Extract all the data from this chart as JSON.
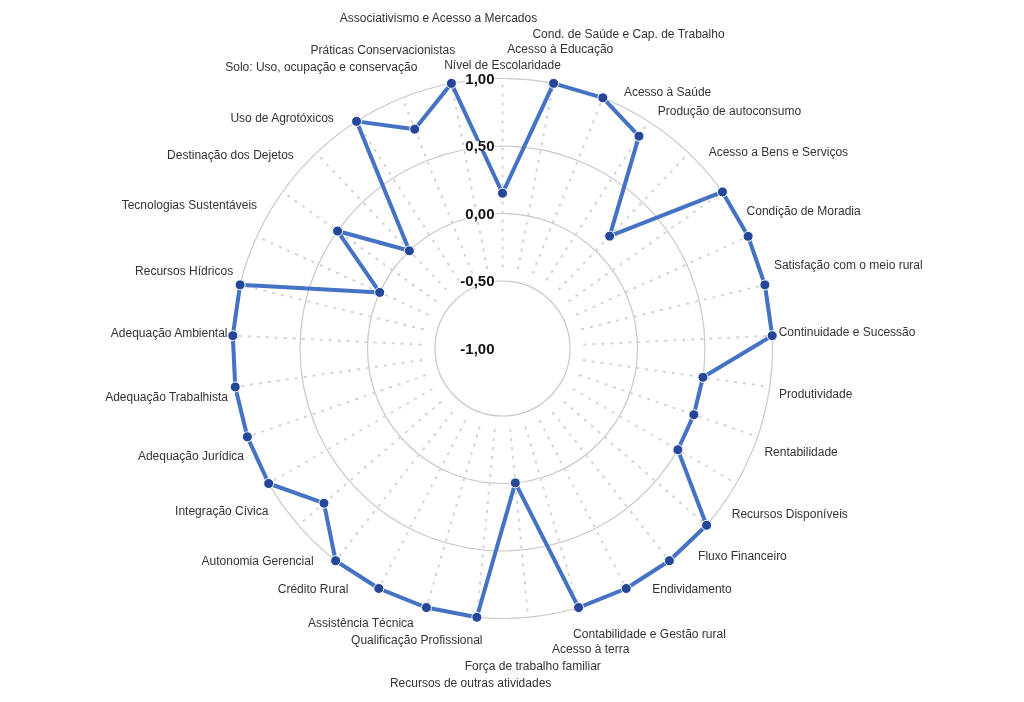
{
  "chart_data": {
    "type": "radar",
    "categories": [
      "Nível de Escolaridade",
      "Acesso à Educação",
      "Cond. de Saúde e Cap. de Trabalho",
      "Acesso à Saúde",
      "Produção de autoconsumo",
      "Acesso a Bens e Serviços",
      "Condição de Moradia",
      "Satisfação com o meio rural",
      "Continuidade e Sucessão",
      "Produtividade",
      "Rentabilidade",
      "Recursos Disponíveis",
      "Fluxo Financeiro",
      "Endividamento",
      "Contabilidade e Gestão rural",
      "Acesso à terra",
      "Força de trabalho familiar",
      "Recursos de outras atividades",
      "Qualificação Profissional",
      "Assistência Técnica",
      "Crédito Rural",
      "Autonomia Gerencial",
      "Integração Cívica",
      "Adequação Jurídica",
      "Adequação Trabalhista",
      "Adequação Ambiental",
      "Recursos Hídricos",
      "Tecnologias Sustentáveis",
      "Destinação dos Dejetos",
      "Uso de Agrotóxicos",
      "Solo: Uso, ocupação e conservação",
      "Práticas Conservacionistas",
      "Associativismo e Acesso a Mercados"
    ],
    "series": [
      {
        "color": "#4472c4",
        "values": [
          0.15,
          1,
          1,
          0.87,
          0.15,
          1,
          1,
          1,
          1,
          0.5,
          0.5,
          0.5,
          1,
          1,
          1,
          1,
          0,
          1,
          1,
          1,
          1,
          0.75,
          1,
          1,
          1,
          1,
          1,
          0,
          0.5,
          0,
          1,
          0.75,
          1
        ]
      }
    ],
    "ylim": [
      -1,
      1
    ],
    "yticks": [
      {
        "value": -1,
        "label": "-1,00"
      },
      {
        "value": -0.5,
        "label": "-0,50"
      },
      {
        "value": 0,
        "label": "0,00"
      },
      {
        "value": 0.5,
        "label": "0,50"
      },
      {
        "value": 1,
        "label": "1,00"
      }
    ],
    "grid": true,
    "marker": "circle"
  }
}
